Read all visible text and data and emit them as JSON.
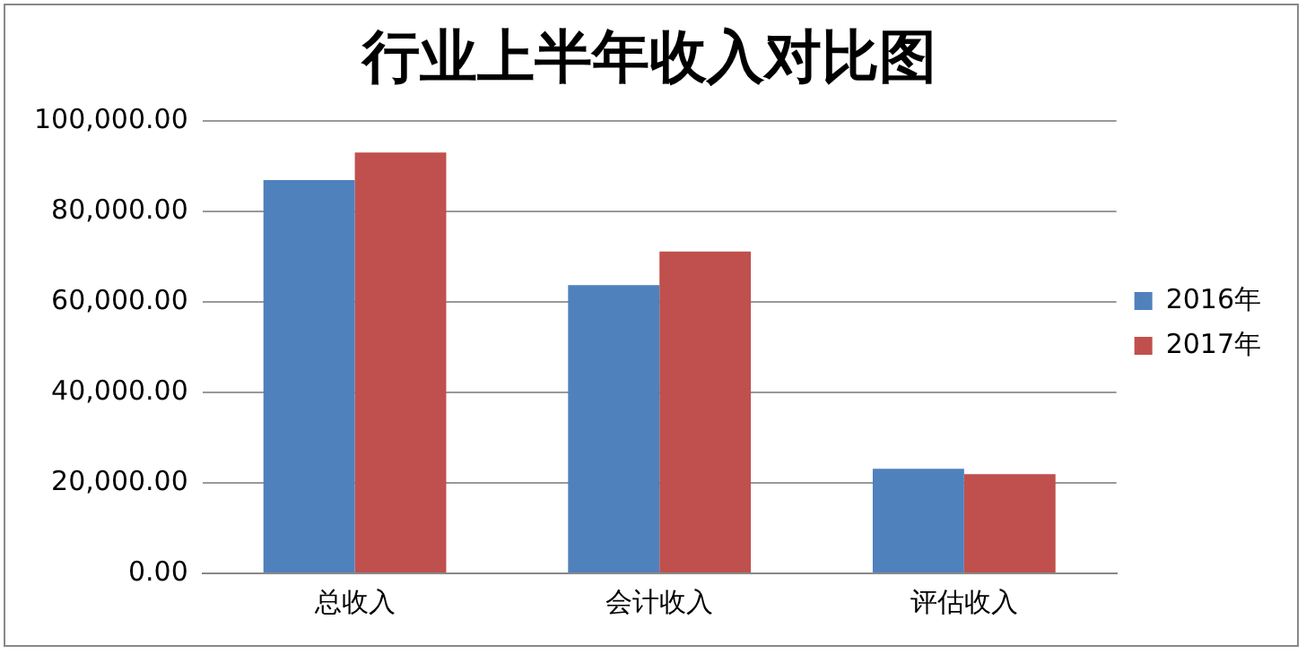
{
  "chart_data": {
    "type": "bar",
    "title": "行业上半年收入对比图",
    "categories": [
      "总收入",
      "会计收入",
      "评估收入"
    ],
    "series": [
      {
        "name": "2016年",
        "color": "#4f81bd",
        "values": [
          86900,
          63700,
          23100
        ]
      },
      {
        "name": "2017年",
        "color": "#c0504d",
        "values": [
          93000,
          71100,
          21900
        ]
      }
    ],
    "ylim": [
      0,
      100000
    ],
    "yticks": [
      {
        "value": 0,
        "label": "0.00"
      },
      {
        "value": 20000,
        "label": "20,000.00"
      },
      {
        "value": 40000,
        "label": "40,000.00"
      },
      {
        "value": 60000,
        "label": "60,000.00"
      },
      {
        "value": 80000,
        "label": "80,000.00"
      },
      {
        "value": 100000,
        "label": "100,000.00"
      }
    ],
    "grid": "y",
    "legend": "right"
  }
}
